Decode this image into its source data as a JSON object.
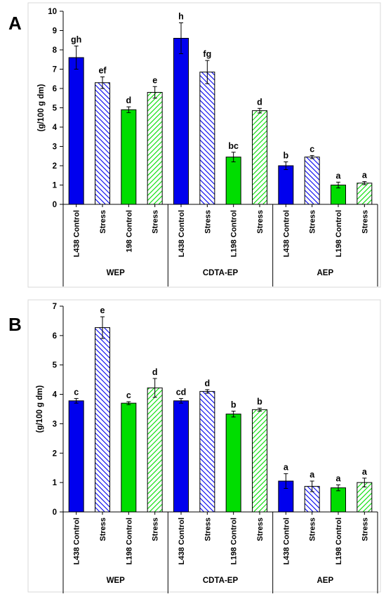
{
  "chart_data": [
    {
      "panel": "A",
      "type": "bar",
      "ylabel": "(g/100 g dm)",
      "ylim": [
        0,
        10
      ],
      "yticks": [
        "0",
        "1",
        "2",
        "3",
        "4",
        "5",
        "6",
        "7",
        "8",
        "9",
        "10"
      ],
      "groups": [
        {
          "label": "WEP",
          "bars": [
            {
              "label": "L438 Control",
              "value": 7.6,
              "error": 0.6,
              "letter": "gh",
              "color": "#0000ee",
              "pattern": "solid"
            },
            {
              "label": "Stress",
              "value": 6.3,
              "error": 0.3,
              "letter": "ef",
              "color": "#0000ee",
              "pattern": "hatch"
            },
            {
              "label": "198 Control",
              "value": 4.9,
              "error": 0.15,
              "letter": "d",
              "color": "#00dd00",
              "pattern": "solid"
            },
            {
              "label": "Stress",
              "value": 5.8,
              "error": 0.3,
              "letter": "e",
              "color": "#00dd00",
              "pattern": "hatch"
            }
          ]
        },
        {
          "label": "CDTA-EP",
          "bars": [
            {
              "label": "L438 Control",
              "value": 8.6,
              "error": 0.8,
              "letter": "h",
              "color": "#0000ee",
              "pattern": "solid"
            },
            {
              "label": "Stress",
              "value": 6.85,
              "error": 0.6,
              "letter": "fg",
              "color": "#0000ee",
              "pattern": "hatch"
            },
            {
              "label": "L198 Control",
              "value": 2.45,
              "error": 0.25,
              "letter": "bc",
              "color": "#00dd00",
              "pattern": "solid"
            },
            {
              "label": "Stress",
              "value": 4.85,
              "error": 0.12,
              "letter": "d",
              "color": "#00dd00",
              "pattern": "hatch"
            }
          ]
        },
        {
          "label": "AEP",
          "bars": [
            {
              "label": "L438 Control",
              "value": 2.0,
              "error": 0.2,
              "letter": "b",
              "color": "#0000ee",
              "pattern": "solid"
            },
            {
              "label": "Stress",
              "value": 2.45,
              "error": 0.08,
              "letter": "c",
              "color": "#0000ee",
              "pattern": "hatch"
            },
            {
              "label": "L198 Control",
              "value": 1.0,
              "error": 0.15,
              "letter": "a",
              "color": "#00dd00",
              "pattern": "solid"
            },
            {
              "label": "Stress",
              "value": 1.1,
              "error": 0.08,
              "letter": "a",
              "color": "#00dd00",
              "pattern": "hatch"
            }
          ]
        }
      ]
    },
    {
      "panel": "B",
      "type": "bar",
      "ylabel": "(g/100 g dm)",
      "ylim": [
        0,
        7
      ],
      "yticks": [
        "0",
        "1",
        "2",
        "3",
        "4",
        "5",
        "6",
        "7"
      ],
      "groups": [
        {
          "label": "WEP",
          "bars": [
            {
              "label": "L438 Control",
              "value": 3.78,
              "error": 0.08,
              "letter": "c",
              "color": "#0000ee",
              "pattern": "solid"
            },
            {
              "label": "Stress",
              "value": 6.27,
              "error": 0.37,
              "letter": "e",
              "color": "#0000ee",
              "pattern": "hatch"
            },
            {
              "label": "L198 Control",
              "value": 3.7,
              "error": 0.05,
              "letter": "c",
              "color": "#00dd00",
              "pattern": "solid"
            },
            {
              "label": "Stress",
              "value": 4.22,
              "error": 0.32,
              "letter": "d",
              "color": "#00dd00",
              "pattern": "hatch"
            }
          ]
        },
        {
          "label": "CDTA-EP",
          "bars": [
            {
              "label": "L438 Control",
              "value": 3.78,
              "error": 0.08,
              "letter": "cd",
              "color": "#0000ee",
              "pattern": "solid"
            },
            {
              "label": "Stress",
              "value": 4.1,
              "error": 0.06,
              "letter": "d",
              "color": "#0000ee",
              "pattern": "hatch"
            },
            {
              "label": "L198 Control",
              "value": 3.33,
              "error": 0.1,
              "letter": "b",
              "color": "#00dd00",
              "pattern": "solid"
            },
            {
              "label": "Stress",
              "value": 3.48,
              "error": 0.05,
              "letter": "b",
              "color": "#00dd00",
              "pattern": "hatch"
            }
          ]
        },
        {
          "label": "AEP",
          "bars": [
            {
              "label": "L438 Control",
              "value": 1.05,
              "error": 0.25,
              "letter": "a",
              "color": "#0000ee",
              "pattern": "solid"
            },
            {
              "label": "Stress",
              "value": 0.87,
              "error": 0.18,
              "letter": "a",
              "color": "#0000ee",
              "pattern": "hatch"
            },
            {
              "label": "L198 Control",
              "value": 0.82,
              "error": 0.1,
              "letter": "a",
              "color": "#00dd00",
              "pattern": "solid"
            },
            {
              "label": "Stress",
              "value": 1.0,
              "error": 0.15,
              "letter": "a",
              "color": "#00dd00",
              "pattern": "hatch"
            }
          ]
        }
      ]
    }
  ]
}
